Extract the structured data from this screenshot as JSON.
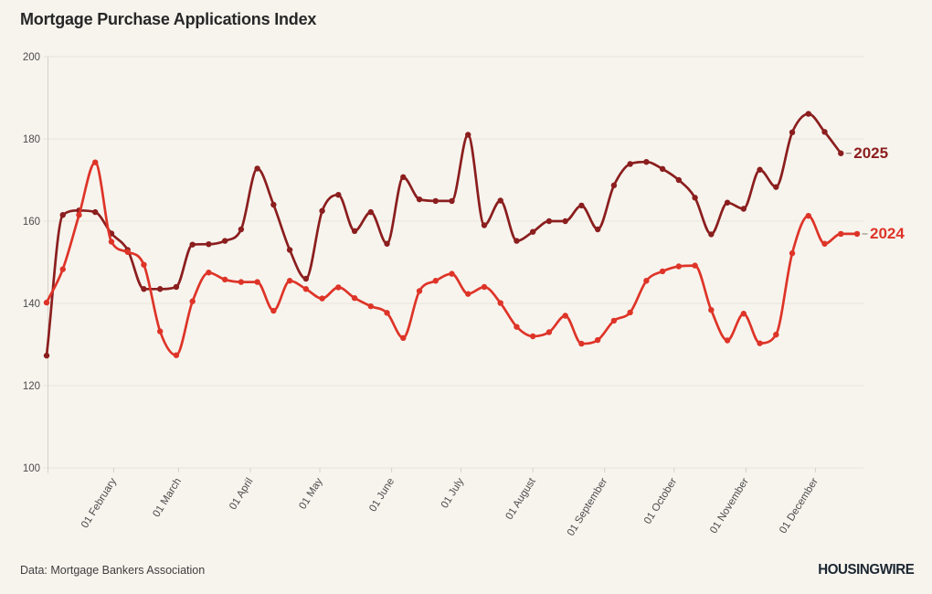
{
  "page": {
    "source_note": "Data: Mortgage Bankers Association",
    "brand": "HOUSINGWIRE",
    "background": "#f7f4ee"
  },
  "chart_data": {
    "type": "line",
    "title": "Mortgage Purchase Applications Index",
    "xlabel": "",
    "ylabel": "",
    "ylim": [
      100,
      200
    ],
    "y_ticks": [
      100,
      120,
      140,
      160,
      180,
      200
    ],
    "grid": "horizontal",
    "legend_position": "end-of-line",
    "points": "weekly",
    "x_ticks": [
      {
        "label": "01 February",
        "day": 29
      },
      {
        "label": "01 March",
        "day": 57
      },
      {
        "label": "01 April",
        "day": 88
      },
      {
        "label": "01 May",
        "day": 118
      },
      {
        "label": "01 June",
        "day": 149
      },
      {
        "label": "01 July",
        "day": 179
      },
      {
        "label": "01 August",
        "day": 210
      },
      {
        "label": "01 September",
        "day": 241
      },
      {
        "label": "01 October",
        "day": 271
      },
      {
        "label": "01 November",
        "day": 302
      },
      {
        "label": "01 December",
        "day": 332
      }
    ],
    "series": [
      {
        "name": "2025",
        "color": "#8b1e1e",
        "values": [
          127.3,
          161.5,
          162.6,
          162.2,
          157,
          153,
          143.5,
          143.5,
          144,
          154.3,
          154.4,
          155.2,
          158,
          172.8,
          164,
          153,
          146,
          162.5,
          166.4,
          157.6,
          162.2,
          154.5,
          170.7,
          165.3,
          164.9,
          164.9,
          181,
          159,
          165,
          155.2,
          157.4,
          160,
          160,
          163.8,
          158,
          168.7,
          173.9,
          174.4,
          172.7,
          170,
          165.7,
          156.8,
          164.5,
          163,
          172.5,
          168.3,
          181.6,
          186.1,
          181.7,
          176.5
        ]
      },
      {
        "name": "2024",
        "color": "#de3428",
        "values": [
          140.2,
          148.3,
          161.5,
          174.3,
          155,
          152.5,
          149.4,
          133.2,
          127.4,
          140.5,
          147.5,
          145.8,
          145.2,
          145.2,
          138.2,
          145.5,
          143.5,
          141.2,
          143.9,
          141.3,
          139.3,
          137.7,
          131.6,
          143,
          145.5,
          147.2,
          142.3,
          144,
          140.1,
          134.3,
          132,
          133,
          137,
          130.2,
          131.1,
          135.8,
          137.8,
          145.5,
          147.8,
          149,
          149.2,
          138.4,
          131,
          137.5,
          130.3,
          132.4,
          152.2,
          161.3,
          154.5,
          156.9,
          156.9
        ]
      }
    ],
    "colors": {
      "grid": "#e8e3da",
      "axis": "#d6d1c7",
      "tick_text": "#4c4c4c",
      "leader_dash": "#9a9288"
    }
  }
}
